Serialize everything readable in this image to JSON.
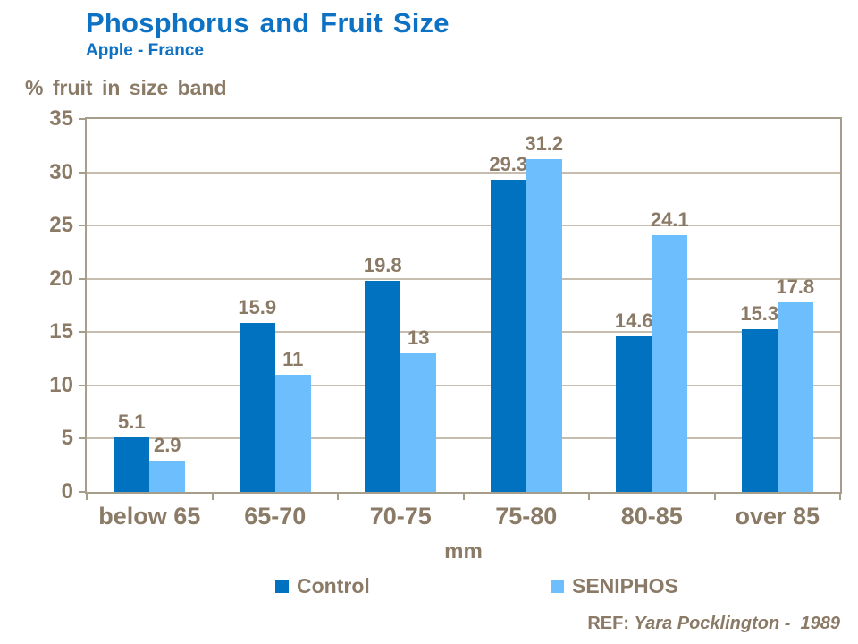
{
  "header": {
    "title": "Phosphorus and Fruit Size",
    "subtitle": "Apple - France"
  },
  "axes": {
    "y_title": "% fruit in size band",
    "x_title": "mm"
  },
  "footer": {
    "ref_label": "REF:",
    "ref_text": "Yara Pocklington -  1989"
  },
  "colors": {
    "title": "#0d72c4",
    "text": "#8a7a66",
    "grid": "#c6bdae",
    "axis": "#a79d8b"
  },
  "chart_data": {
    "type": "bar",
    "title": "Phosphorus and Fruit Size",
    "subtitle": "Apple - France",
    "categories": [
      "below 65",
      "65-70",
      "70-75",
      "75-80",
      "80-85",
      "over 85"
    ],
    "series": [
      {
        "name": "Control",
        "color": "#0072bf",
        "values": [
          5.1,
          15.9,
          19.8,
          29.3,
          14.6,
          15.3
        ]
      },
      {
        "name": "SENIPHOS",
        "color": "#6cbefc",
        "values": [
          2.9,
          11,
          13,
          31.2,
          24.1,
          17.8
        ]
      }
    ],
    "xlabel": "mm",
    "ylabel": "% fruit in size band",
    "ylim": [
      0,
      35
    ],
    "yticks": [
      0,
      5,
      10,
      15,
      20,
      25,
      30,
      35
    ],
    "grid": true,
    "value_labels": true,
    "legend_position": "bottom"
  }
}
